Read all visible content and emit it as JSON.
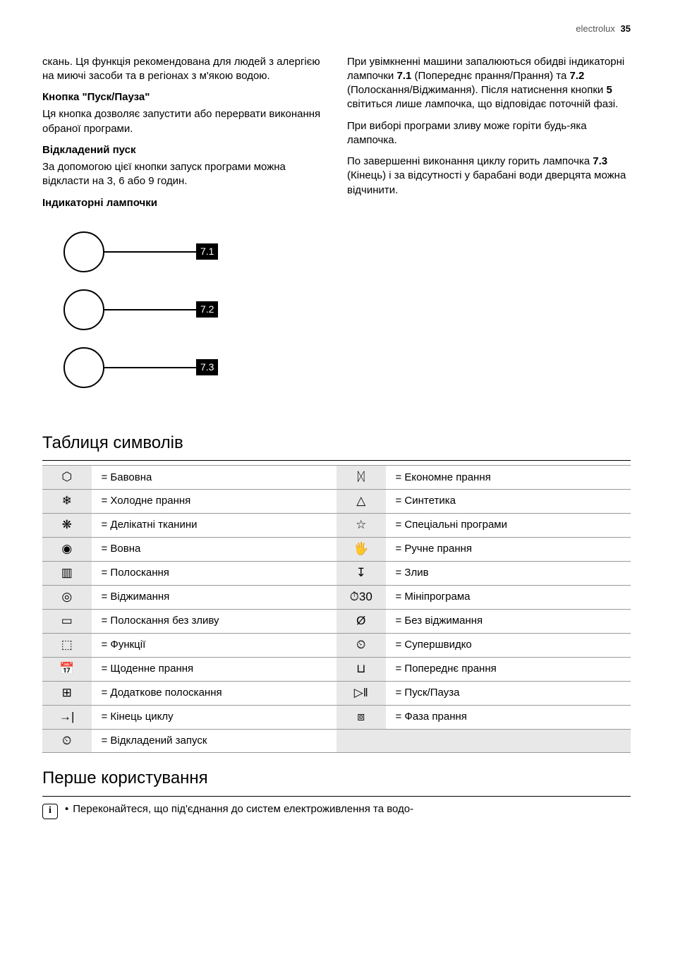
{
  "header": {
    "brand": "electrolux",
    "page_number": "35"
  },
  "left_column": {
    "intro_continuation": "скань. Ця функція рекомендована для людей з алергією на миючі засоби та в регіонах з м'якою водою.",
    "start_pause_title": "Кнопка \"Пуск/Пауза\"",
    "start_pause_body": "Ця кнопка дозволяє запустити або перервати виконання обраної програми.",
    "delay_title": "Відкладений пуск",
    "delay_body": "За допомогою цієї кнопки запуск програми можна відкласти на 3, 6 або 9 годин.",
    "indicators_title": "Індикаторні лампочки",
    "labels": {
      "l1": "7.1",
      "l2": "7.2",
      "l3": "7.3"
    }
  },
  "right_column": {
    "p1a": "При увімкненні машини запалюються обидві індикаторні лампочки ",
    "p1_ref1": "7.1",
    "p1b": " (Попереднє прання/Прання) та ",
    "p1_ref2": "7.2",
    "p1c": " (Полоскання/Віджимання). Після натиснення кнопки ",
    "p1_ref3": "5",
    "p1d": " світиться лише лампочка, що відповідає поточній фазі.",
    "p2": "При виборі програми зливу може горіти будь-яка лампочка.",
    "p3a": "По завершенні виконання циклу горить лампочка ",
    "p3_ref": "7.3",
    "p3b": " (Кінець) і за відсутності у барабані води дверцята можна відчинити."
  },
  "symbols_section_title": "Таблиця символів",
  "symbols": [
    {
      "i1": "⬡",
      "t1": "= Бавовна",
      "i2": "ᛞ",
      "t2": "= Економне прання"
    },
    {
      "i1": "❄",
      "t1": "= Холодне прання",
      "i2": "△",
      "t2": "= Синтетика"
    },
    {
      "i1": "❋",
      "t1": "= Делікатні тканини",
      "i2": "☆",
      "t2": "= Спеціальні програми"
    },
    {
      "i1": "◉",
      "t1": "= Вовна",
      "i2": "🖐",
      "t2": "= Ручне прання"
    },
    {
      "i1": "▥",
      "t1": "= Полоскання",
      "i2": "↧",
      "t2": "= Злив"
    },
    {
      "i1": "◎",
      "t1": "= Віджимання",
      "i2": "⏱30",
      "t2": "= Мініпрограма"
    },
    {
      "i1": "▭",
      "t1": "= Полоскання без зливу",
      "i2": "Ø",
      "t2": "= Без віджимання"
    },
    {
      "i1": "⬚",
      "t1": "= Функції",
      "i2": "⏲",
      "t2": "= Супершвидко"
    },
    {
      "i1": "📅",
      "t1": "= Щоденне прання",
      "i2": "⊔",
      "t2": "= Попереднє прання"
    },
    {
      "i1": "⊞",
      "t1": "= Додаткове полоскання",
      "i2": "▷‖",
      "t2": "= Пуск/Пауза"
    },
    {
      "i1": "→|",
      "t1": "= Кінець циклу",
      "i2": "⧈",
      "t2": "= Фаза прання"
    },
    {
      "i1": "⏲",
      "t1": "= Відкладений запуск",
      "i2": "",
      "t2": ""
    }
  ],
  "first_use_title": "Перше користування",
  "first_use_bullet": "Переконайтеся, що під'єднання до систем електроживлення та водо-"
}
